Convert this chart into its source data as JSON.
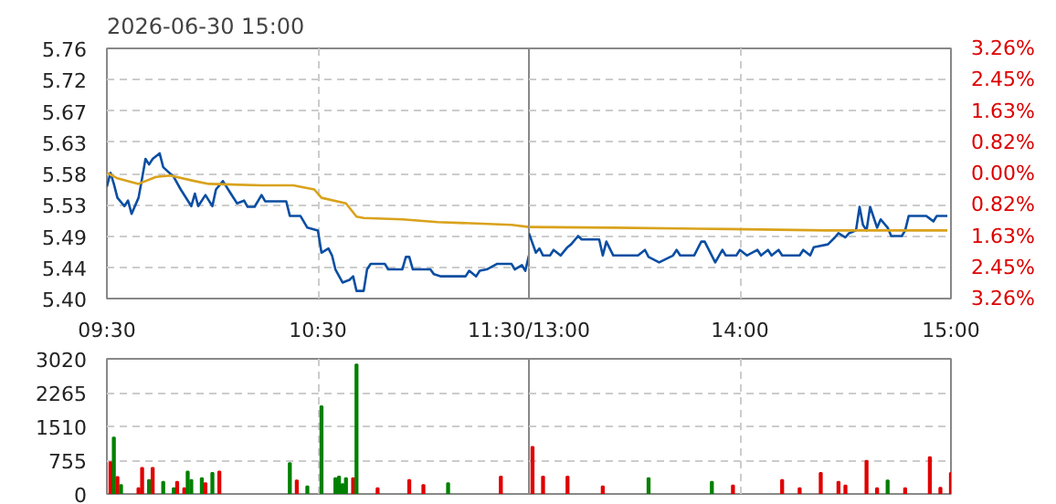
{
  "chart_data": [
    {
      "type": "line",
      "title": "2026-06-30 15:00",
      "xlim": [
        9.5,
        11.5
      ],
      "xticks": [
        {
          "value": 9.5,
          "label": "09:30"
        },
        {
          "value": 10.5,
          "label": "10:30"
        },
        {
          "value": 11.5,
          "label": "11:30/13:00"
        }
      ],
      "ylim": [
        5.4,
        5.76
      ],
      "yticks": [
        {
          "value": 5.4,
          "label": "5.40"
        },
        {
          "value": 5.445,
          "label": "5.44"
        },
        {
          "value": 5.49,
          "label": "5.49"
        },
        {
          "value": 5.535,
          "label": "5.53"
        },
        {
          "value": 5.58,
          "label": "5.58"
        },
        {
          "value": 5.625,
          "label": "5.63"
        },
        {
          "value": 5.67,
          "label": "5.67"
        },
        {
          "value": 5.715,
          "label": "5.72"
        },
        {
          "value": 5.76,
          "label": "5.76"
        }
      ],
      "grid": true,
      "line_style": "solid",
      "series": [
        {
          "color": "#0b4ea2",
          "x": [
            9.5,
            9.517,
            9.533,
            9.55,
            9.583,
            9.6,
            9.617,
            9.65,
            9.667,
            9.683,
            9.7,
            9.717,
            9.75,
            9.767,
            9.817,
            9.85,
            9.9,
            9.917,
            9.933,
            9.967,
            10,
            10.017,
            10.05,
            10.083,
            10.117,
            10.15,
            10.167,
            10.2,
            10.233,
            10.25,
            10.35,
            10.367,
            10.417,
            10.45,
            10.5,
            10.517,
            10.55,
            10.567,
            10.583,
            10.617,
            10.65,
            10.667,
            10.683,
            10.717,
            10.733,
            10.75,
            10.817,
            10.833,
            10.9,
            10.917,
            10.933,
            10.95,
            11.033,
            11.05,
            11.083,
            11.2,
            11.217,
            11.25,
            11.267,
            11.3,
            11.35,
            11.417,
            11.433,
            11.467,
            11.483,
            11.5
          ],
          "values": [
            5.561,
            5.581,
            5.565,
            5.545,
            5.533,
            5.541,
            5.522,
            5.545,
            5.573,
            5.601,
            5.593,
            5.601,
            5.609,
            5.589,
            5.575,
            5.557,
            5.533,
            5.551,
            5.533,
            5.549,
            5.533,
            5.557,
            5.569,
            5.553,
            5.537,
            5.541,
            5.532,
            5.532,
            5.549,
            5.54,
            5.54,
            5.519,
            5.519,
            5.502,
            5.498,
            5.466,
            5.472,
            5.462,
            5.442,
            5.423,
            5.427,
            5.432,
            5.411,
            5.411,
            5.442,
            5.45,
            5.45,
            5.442,
            5.442,
            5.46,
            5.46,
            5.442,
            5.442,
            5.435,
            5.432,
            5.432,
            5.44,
            5.432,
            5.44,
            5.442,
            5.45,
            5.45,
            5.442,
            5.448,
            5.44,
            5.462
          ]
        },
        {
          "color": "#d9a21b",
          "x": [
            9.5,
            9.55,
            9.65,
            9.733,
            9.8,
            9.917,
            9.983,
            10.233,
            10.383,
            10.483,
            10.517,
            10.633,
            10.683,
            10.717,
            10.9,
            11.067,
            11.25,
            11.417,
            11.5
          ],
          "values": [
            5.581,
            5.573,
            5.565,
            5.575,
            5.577,
            5.569,
            5.565,
            5.563,
            5.563,
            5.557,
            5.545,
            5.537,
            5.518,
            5.516,
            5.514,
            5.51,
            5.508,
            5.506,
            5.503
          ]
        }
      ]
    },
    {
      "type": "line",
      "xlim": [
        13,
        15
      ],
      "xticks": [
        {
          "value": 14,
          "label": "14:00"
        },
        {
          "value": 15,
          "label": "15:00"
        }
      ],
      "ylim": [
        5.4,
        5.76
      ],
      "yticks": [
        {
          "value": 5.4,
          "label": null
        },
        {
          "value": 5.445,
          "label": null
        },
        {
          "value": 5.49,
          "label": null
        },
        {
          "value": 5.535,
          "label": null
        },
        {
          "value": 5.58,
          "label": null
        },
        {
          "value": 5.625,
          "label": null
        },
        {
          "value": 5.67,
          "label": null
        },
        {
          "value": 5.715,
          "label": null
        },
        {
          "value": 5.76,
          "label": null
        }
      ],
      "y2lim": [
        -3.26,
        3.26
      ],
      "y2ticks": [
        {
          "value": -3.26,
          "label": "3.26%"
        },
        {
          "value": -2.445,
          "label": "2.45%"
        },
        {
          "value": -1.63,
          "label": "1.63%"
        },
        {
          "value": -0.815,
          "label": "0.82%"
        },
        {
          "value": 0,
          "label": "0.00%"
        },
        {
          "value": 0.815,
          "label": "0.82%"
        },
        {
          "value": 1.63,
          "label": "1.63%"
        },
        {
          "value": 2.445,
          "label": "2.45%"
        },
        {
          "value": 3.26,
          "label": "3.26%"
        }
      ],
      "tick_labels": "x",
      "grid": true,
      "line_style": "solid",
      "series": [
        {
          "color": "#0b4ea2",
          "x": [
            13,
            13.033,
            13.05,
            13.067,
            13.1,
            13.117,
            13.15,
            13.183,
            13.2,
            13.233,
            13.25,
            13.333,
            13.35,
            13.367,
            13.4,
            13.517,
            13.55,
            13.567,
            13.617,
            13.683,
            13.7,
            13.717,
            13.783,
            13.817,
            13.833,
            13.883,
            13.917,
            13.933,
            13.983,
            14,
            14.033,
            14.083,
            14.1,
            14.133,
            14.15,
            14.183,
            14.2,
            14.283,
            14.3,
            14.333,
            14.35,
            14.417,
            14.45,
            14.467,
            14.5,
            14.517,
            14.55,
            14.567,
            14.583,
            14.6,
            14.617,
            14.65,
            14.667,
            14.7,
            14.717,
            14.767,
            14.783,
            14.8,
            14.883,
            14.917,
            14.933,
            14.983
          ],
          "values": [
            5.494,
            5.466,
            5.472,
            5.462,
            5.462,
            5.47,
            5.462,
            5.474,
            5.478,
            5.49,
            5.485,
            5.485,
            5.462,
            5.482,
            5.462,
            5.462,
            5.47,
            5.46,
            5.452,
            5.462,
            5.47,
            5.462,
            5.462,
            5.482,
            5.482,
            5.452,
            5.47,
            5.462,
            5.462,
            5.47,
            5.462,
            5.47,
            5.462,
            5.47,
            5.462,
            5.47,
            5.462,
            5.462,
            5.47,
            5.462,
            5.474,
            5.478,
            5.488,
            5.494,
            5.488,
            5.494,
            5.498,
            5.532,
            5.506,
            5.498,
            5.532,
            5.502,
            5.514,
            5.502,
            5.49,
            5.49,
            5.498,
            5.519,
            5.519,
            5.511,
            5.519,
            5.519
          ]
        },
        {
          "color": "#d9a21b",
          "x": [
            13,
            13.4,
            13.95,
            14.417,
            14.983
          ],
          "values": [
            5.503,
            5.502,
            5.5,
            5.498,
            5.498
          ]
        }
      ]
    },
    {
      "type": "bar",
      "xlim": [
        9.5,
        11.5
      ],
      "xticks": [
        {
          "value": 10.5,
          "label": null
        }
      ],
      "ylim": [
        0,
        3020
      ],
      "yticks": [
        0,
        755,
        1510,
        2265,
        3020
      ],
      "grid": true,
      "tick_labels": "y",
      "x": [
        9.517,
        9.533,
        9.55,
        9.567,
        9.65,
        9.667,
        9.7,
        9.717,
        9.767,
        9.817,
        9.833,
        9.867,
        9.883,
        9.9,
        9.95,
        9.967,
        10,
        10.033,
        10.367,
        10.4,
        10.45,
        10.517,
        10.583,
        10.6,
        10.617,
        10.633,
        10.667,
        10.683,
        10.783,
        10.933,
        11,
        11.117,
        11.367
      ],
      "values": [
        710,
        1260,
        380,
        200,
        130,
        580,
        310,
        580,
        270,
        130,
        270,
        130,
        500,
        310,
        350,
        240,
        470,
        500,
        690,
        300,
        170,
        1960,
        350,
        390,
        220,
        350,
        350,
        2890,
        130,
        310,
        200,
        240,
        390
      ],
      "colors": [
        "#e00000",
        "#008000",
        "#e00000",
        "#008000",
        "#e00000",
        "#e00000",
        "#008000",
        "#e00000",
        "#008000",
        "#008000",
        "#e00000",
        "#e00000",
        "#008000",
        "#008000",
        "#008000",
        "#e00000",
        "#008000",
        "#e00000",
        "#008000",
        "#e00000",
        "#008000",
        "#008000",
        "#008000",
        "#008000",
        "#008000",
        "#008000",
        "#e00000",
        "#008000",
        "#e00000",
        "#e00000",
        "#e00000",
        "#008000",
        "#e00000"
      ]
    },
    {
      "type": "bar",
      "xlim": [
        13,
        15
      ],
      "xticks": [
        {
          "value": 14,
          "label": null
        }
      ],
      "ylim": [
        0,
        3020
      ],
      "yticks": [
        {
          "value": 0,
          "label": null
        },
        {
          "value": 755,
          "label": null
        },
        {
          "value": 1510,
          "label": null
        },
        {
          "value": 2265,
          "label": null
        },
        {
          "value": 3020,
          "label": null
        }
      ],
      "grid": true,
      "tick_labels": false,
      "x": [
        13.017,
        13.067,
        13.183,
        13.35,
        13.567,
        13.867,
        13.967,
        14.2,
        14.283,
        14.383,
        14.467,
        14.5,
        14.6,
        14.65,
        14.7,
        14.783,
        14.9,
        14.95,
        15
      ],
      "values": [
        1050,
        390,
        390,
        170,
        350,
        270,
        190,
        310,
        130,
        470,
        270,
        190,
        740,
        130,
        300,
        130,
        820,
        140,
        470
      ],
      "colors": [
        "#e00000",
        "#e00000",
        "#e00000",
        "#e00000",
        "#008000",
        "#008000",
        "#e00000",
        "#e00000",
        "#e00000",
        "#e00000",
        "#e00000",
        "#e00000",
        "#e00000",
        "#e00000",
        "#008000",
        "#e00000",
        "#e00000",
        "#e00000",
        "#e00000"
      ]
    }
  ]
}
